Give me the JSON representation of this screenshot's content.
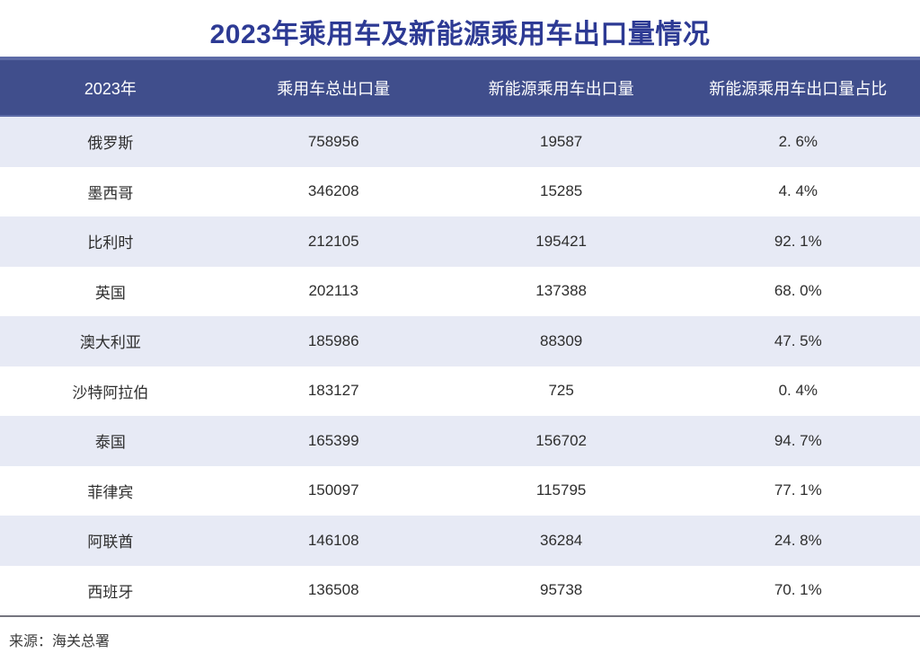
{
  "title": "2023年乘用车及新能源乘用车出口量情况",
  "colors": {
    "title_text": "#2D3A94",
    "header_bg": "#404E8C",
    "header_edge": "#5D6BA6",
    "alt_row_bg": "#E7EAF5",
    "body_text": "#2E2E2E"
  },
  "chart_data": {
    "type": "table",
    "title": "2023年乘用车及新能源乘用车出口量情况",
    "columns": [
      "2023年",
      "乘用车总出口量",
      "新能源乘用车出口量",
      "新能源乘用车出口量占比"
    ],
    "rows": [
      {
        "country": "俄罗斯",
        "total": "758956",
        "nev": "19587",
        "share": "2. 6%"
      },
      {
        "country": "墨西哥",
        "total": "346208",
        "nev": "15285",
        "share": "4. 4%"
      },
      {
        "country": "比利时",
        "total": "212105",
        "nev": "195421",
        "share": "92. 1%"
      },
      {
        "country": "英国",
        "total": "202113",
        "nev": "137388",
        "share": "68. 0%"
      },
      {
        "country": "澳大利亚",
        "total": "185986",
        "nev": "88309",
        "share": "47. 5%"
      },
      {
        "country": "沙特阿拉伯",
        "total": "183127",
        "nev": "725",
        "share": "0. 4%"
      },
      {
        "country": "泰国",
        "total": "165399",
        "nev": "156702",
        "share": "94. 7%"
      },
      {
        "country": "菲律宾",
        "total": "150097",
        "nev": "115795",
        "share": "77. 1%"
      },
      {
        "country": "阿联酋",
        "total": "146108",
        "nev": "36284",
        "share": "24. 8%"
      },
      {
        "country": "西班牙",
        "total": "136508",
        "nev": "95738",
        "share": "70. 1%"
      }
    ]
  },
  "footer": {
    "source": "来源：海关总署"
  }
}
